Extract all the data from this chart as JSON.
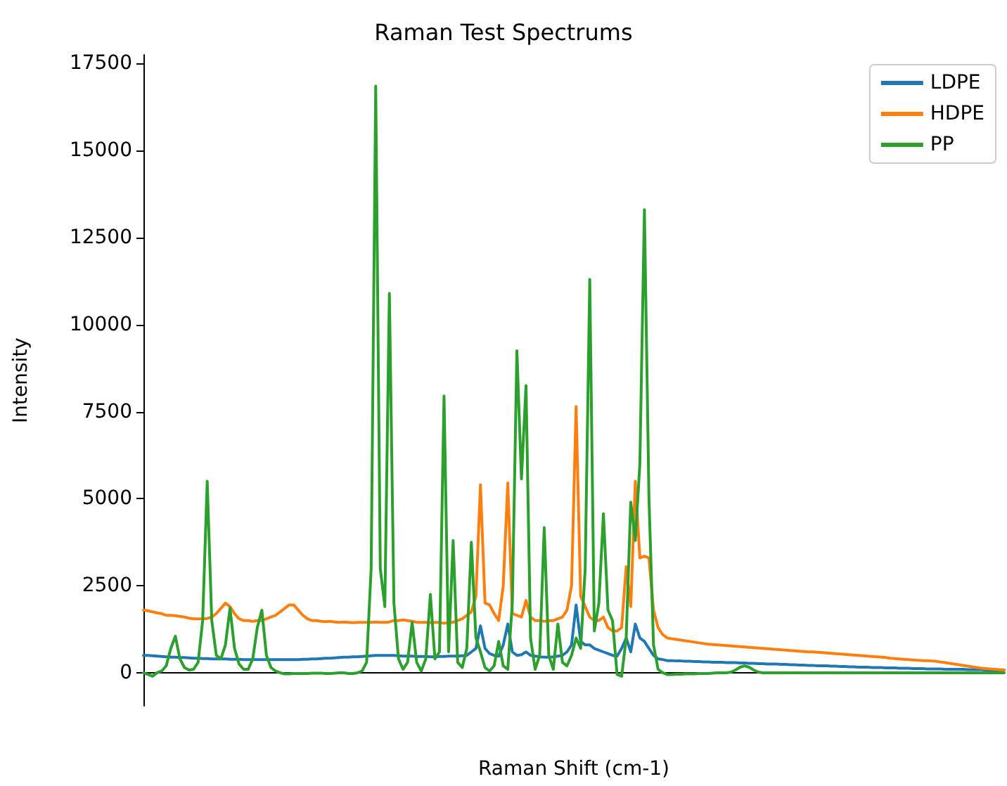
{
  "chart_data": {
    "type": "line",
    "title": "Raman Test Spectrums",
    "xlabel": "Raman Shift (cm-1)",
    "ylabel": "Intensity",
    "categories": [
      null,
      null,
      null,
      null,
      null,
      null,
      null,
      null,
      null,
      null,
      null,
      null,
      null,
      null,
      null,
      null,
      null,
      null,
      null,
      null,
      null,
      null,
      null,
      null,
      null,
      null,
      null,
      null,
      null,
      null,
      null,
      null,
      null,
      null,
      null,
      null,
      null,
      null,
      null,
      null,
      null,
      null,
      null,
      null,
      null,
      null,
      null,
      null,
      null,
      null,
      null,
      null,
      null,
      null,
      null,
      null,
      null,
      null,
      null,
      null,
      null,
      null,
      null,
      null,
      null,
      null,
      null,
      null,
      null,
      null,
      null,
      null,
      null,
      null,
      null,
      null,
      null,
      null,
      null,
      null,
      null,
      null,
      null,
      null,
      null,
      null,
      null,
      null,
      null,
      null,
      null,
      null,
      null,
      null,
      null,
      null,
      null,
      null,
      null,
      null,
      null,
      null,
      null,
      null,
      null,
      null,
      null,
      null,
      null,
      null,
      null,
      null,
      null,
      null,
      null,
      null,
      null,
      null,
      null,
      null,
      null,
      null,
      null,
      null,
      null,
      null,
      null,
      null,
      null,
      null,
      null,
      null,
      null,
      null,
      null,
      null,
      null,
      null,
      null,
      null,
      null,
      null,
      null,
      null,
      null,
      null,
      null,
      null,
      null,
      null,
      null,
      null,
      null,
      null,
      null,
      null,
      null,
      null,
      null,
      null,
      null,
      null,
      null,
      null,
      null,
      null,
      null,
      null,
      null,
      null,
      null,
      null,
      null,
      null,
      null,
      null,
      null,
      null,
      null,
      null,
      null,
      null,
      null,
      null,
      null,
      null,
      null,
      null,
      null,
      null
    ],
    "series": [
      {
        "name": "LDPE",
        "color": "#1f77b4",
        "values": [
          500,
          500,
          490,
          480,
          470,
          460,
          450,
          450,
          440,
          440,
          430,
          420,
          420,
          410,
          410,
          400,
          400,
          400,
          400,
          390,
          390,
          390,
          380,
          380,
          380,
          380,
          380,
          380,
          380,
          380,
          380,
          380,
          380,
          380,
          380,
          390,
          390,
          400,
          400,
          410,
          420,
          420,
          430,
          440,
          450,
          450,
          460,
          460,
          470,
          480,
          490,
          500,
          500,
          500,
          500,
          500,
          490,
          480,
          480,
          480,
          470,
          470,
          470,
          460,
          460,
          470,
          470,
          480,
          480,
          480,
          490,
          500,
          600,
          700,
          1350,
          700,
          550,
          500,
          480,
          800,
          1400,
          600,
          500,
          520,
          600,
          500,
          480,
          460,
          450,
          450,
          460,
          480,
          500,
          600,
          800,
          1950,
          900,
          800,
          800,
          700,
          650,
          600,
          550,
          500,
          480,
          700,
          1000,
          600,
          1400,
          1000,
          900,
          700,
          500,
          400,
          380,
          350,
          350,
          340,
          340,
          330,
          330,
          320,
          320,
          310,
          310,
          300,
          300,
          300,
          290,
          290,
          290,
          280,
          280,
          270,
          270,
          260,
          260,
          250,
          250,
          250,
          240,
          240,
          230,
          230,
          220,
          220,
          210,
          210,
          200,
          200,
          200,
          190,
          190,
          180,
          180,
          170,
          170,
          160,
          160,
          160,
          150,
          150,
          150,
          140,
          140,
          140,
          130,
          130,
          130,
          120,
          120,
          120,
          110,
          110,
          110,
          110,
          100,
          100,
          100,
          100,
          100,
          90,
          90,
          90,
          90,
          80,
          80,
          80,
          80,
          80
        ]
      },
      {
        "name": "HDPE",
        "color": "#ff7f0e",
        "values": [
          1800,
          1780,
          1750,
          1720,
          1700,
          1650,
          1650,
          1640,
          1620,
          1600,
          1570,
          1550,
          1550,
          1550,
          1560,
          1600,
          1700,
          1850,
          2000,
          1900,
          1700,
          1550,
          1500,
          1500,
          1480,
          1500,
          1500,
          1550,
          1600,
          1650,
          1750,
          1850,
          1950,
          1950,
          1800,
          1650,
          1550,
          1500,
          1500,
          1480,
          1470,
          1480,
          1460,
          1450,
          1460,
          1450,
          1440,
          1450,
          1450,
          1450,
          1450,
          1460,
          1450,
          1450,
          1460,
          1500,
          1500,
          1520,
          1500,
          1480,
          1450,
          1450,
          1450,
          1440,
          1450,
          1450,
          1420,
          1450,
          1450,
          1500,
          1550,
          1650,
          1750,
          2200,
          5400,
          2000,
          1950,
          1700,
          1500,
          2500,
          5450,
          1700,
          1650,
          1600,
          2080,
          1600,
          1500,
          1500,
          1480,
          1500,
          1500,
          1550,
          1600,
          1800,
          2500,
          7650,
          2200,
          1900,
          1600,
          1500,
          1500,
          1600,
          1300,
          1200,
          1200,
          1300,
          3050,
          1900,
          5500,
          3300,
          3350,
          3300,
          1800,
          1300,
          1100,
          1000,
          980,
          960,
          940,
          920,
          900,
          880,
          860,
          840,
          820,
          810,
          800,
          790,
          780,
          770,
          760,
          750,
          740,
          730,
          720,
          710,
          700,
          690,
          680,
          670,
          660,
          650,
          640,
          630,
          620,
          610,
          600,
          600,
          590,
          580,
          570,
          560,
          550,
          540,
          530,
          520,
          510,
          500,
          490,
          480,
          470,
          460,
          450,
          440,
          420,
          410,
          400,
          390,
          380,
          370,
          360,
          350,
          350,
          340,
          330,
          310,
          290,
          270,
          250,
          230,
          210,
          190,
          170,
          150,
          130,
          120,
          110,
          100,
          90,
          80
        ]
      },
      {
        "name": "PP",
        "color": "#2ca02c",
        "values": [
          0,
          -50,
          -100,
          0,
          50,
          200,
          700,
          1050,
          400,
          150,
          80,
          100,
          300,
          1500,
          5500,
          1500,
          500,
          400,
          800,
          1850,
          700,
          250,
          100,
          100,
          400,
          1300,
          1800,
          500,
          150,
          50,
          0,
          -30,
          -30,
          -20,
          -20,
          -20,
          -20,
          -10,
          -10,
          -10,
          -20,
          -20,
          -10,
          0,
          0,
          -20,
          -20,
          0,
          50,
          300,
          3000,
          16850,
          3000,
          1900,
          10900,
          2000,
          400,
          100,
          300,
          1450,
          300,
          50,
          400,
          2250,
          400,
          600,
          7950,
          600,
          3800,
          300,
          150,
          700,
          3750,
          1000,
          600,
          150,
          50,
          200,
          900,
          200,
          100,
          2000,
          9250,
          5570,
          8250,
          1000,
          100,
          500,
          4170,
          500,
          100,
          1400,
          300,
          200,
          500,
          1000,
          700,
          3000,
          11300,
          1200,
          2000,
          4570,
          1800,
          1500,
          -50,
          -100,
          1000,
          4900,
          3800,
          6000,
          13300,
          5000,
          800,
          100,
          0,
          -50,
          -50,
          -40,
          -40,
          -30,
          -30,
          -30,
          -20,
          -20,
          -20,
          -10,
          0,
          0,
          0,
          20,
          80,
          160,
          200,
          160,
          80,
          20,
          0,
          0,
          0,
          0,
          0,
          0,
          0,
          0,
          0,
          0,
          0,
          0,
          0,
          0,
          0,
          0,
          0,
          0,
          0,
          0,
          0,
          0,
          0,
          0,
          0,
          0,
          0,
          0,
          0,
          0,
          0,
          0,
          0,
          0,
          0,
          0,
          0,
          0,
          0,
          0,
          0,
          0,
          0,
          0,
          0,
          0,
          0,
          0,
          0,
          0,
          0,
          0,
          0,
          0
        ]
      }
    ],
    "ylim": [
      -950,
      17750
    ],
    "yticks": [
      0,
      2500,
      5000,
      7500,
      10000,
      12500,
      15000,
      17500
    ],
    "legend": "top right",
    "tick_labels": "y"
  }
}
